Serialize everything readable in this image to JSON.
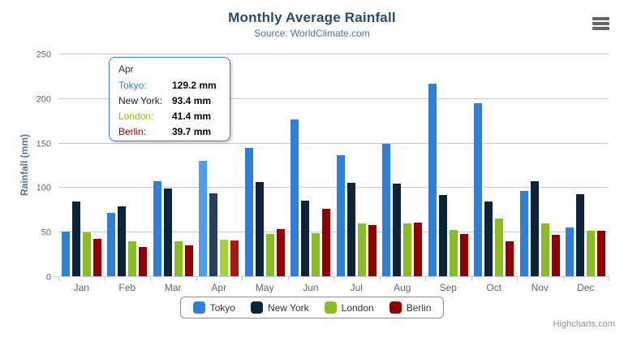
{
  "chart_data": {
    "type": "bar",
    "title": "Monthly Average Rainfall",
    "subtitle": "Source: WorldClimate.com",
    "ylabel": "Rainfall (mm)",
    "xlabel": "",
    "ylim": [
      0,
      250
    ],
    "yticks": [
      0,
      50,
      100,
      150,
      200,
      250
    ],
    "grid": true,
    "legend_position": "bottom-center",
    "categories": [
      "Jan",
      "Feb",
      "Mar",
      "Apr",
      "May",
      "Jun",
      "Jul",
      "Aug",
      "Sep",
      "Oct",
      "Nov",
      "Dec"
    ],
    "series": [
      {
        "name": "Tokyo",
        "color": "#2f7ed8",
        "hover_color": "#4f9df2",
        "values": [
          49.9,
          71.5,
          106.4,
          129.2,
          144.0,
          176.0,
          135.6,
          148.5,
          216.4,
          194.1,
          95.6,
          54.4
        ]
      },
      {
        "name": "New York",
        "color": "#0d233a",
        "hover_color": "#25405c",
        "values": [
          83.6,
          78.8,
          98.5,
          93.4,
          106.0,
          84.5,
          105.0,
          104.3,
          91.2,
          83.5,
          106.6,
          92.3
        ]
      },
      {
        "name": "London",
        "color": "#8bbc21",
        "hover_color": "#a6d336",
        "values": [
          48.9,
          38.8,
          39.3,
          41.4,
          47.0,
          48.3,
          59.0,
          59.6,
          52.4,
          65.2,
          59.3,
          51.2
        ]
      },
      {
        "name": "Berlin",
        "color": "#910000",
        "hover_color": "#ab1616",
        "values": [
          42.4,
          33.2,
          34.5,
          39.7,
          52.6,
          75.5,
          57.4,
          60.4,
          47.6,
          39.1,
          46.8,
          51.1
        ]
      }
    ],
    "hovered_category_index": 3,
    "title_color": "#274b6d",
    "subtitle_color": "#4d759e",
    "y_title_color": "#4d759e",
    "axis_label_color": "#666666",
    "gridline_color": "#c8c8c8",
    "axis_line_color": "#c0d0e0"
  },
  "tooltip": {
    "header": "Apr",
    "border_color": "#2f7ed8",
    "rows": [
      {
        "name": "Tokyo:",
        "color": "#2f7ed8",
        "value": "129.2 mm"
      },
      {
        "name": "New York:",
        "color": "#0d233a",
        "value": "93.4 mm"
      },
      {
        "name": "London:",
        "color": "#8bbc21",
        "value": "41.4 mm"
      },
      {
        "name": "Berlin:",
        "color": "#910000",
        "value": "39.7 mm"
      }
    ]
  },
  "legend": {
    "items": [
      "Tokyo",
      "New York",
      "London",
      "Berlin"
    ]
  },
  "credits": {
    "label": "Highcharts.com"
  },
  "menu": {
    "icon": "hamburger-icon"
  }
}
